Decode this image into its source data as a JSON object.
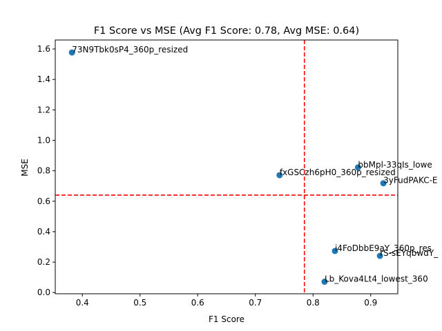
{
  "chart_data": {
    "type": "scatter",
    "title": "F1 Score vs MSE (Avg F1 Score: 0.78, Avg MSE: 0.64)",
    "xlabel": "F1 Score",
    "ylabel": "MSE",
    "xlim": [
      0.353,
      0.947
    ],
    "ylim": [
      -0.008,
      1.659
    ],
    "xticks": [
      0.4,
      0.5,
      0.6,
      0.7,
      0.8,
      0.9
    ],
    "yticks": [
      0.0,
      0.2,
      0.4,
      0.6,
      0.8,
      1.0,
      1.2,
      1.4,
      1.6
    ],
    "grid": false,
    "marker_color": "#1f77b4",
    "reference_line_color": "#ff0000",
    "reference_lines": {
      "x": 0.785,
      "y": 0.64
    },
    "points": [
      {
        "label": "73N9Tbk0sP4_360p_resized",
        "x": 0.382,
        "y": 1.577
      },
      {
        "label": "bbMpl-33qIs_lowe",
        "x": 0.878,
        "y": 0.822
      },
      {
        "label": "fxGSCzh6pH0_360p_resized",
        "x": 0.742,
        "y": 0.771
      },
      {
        "label": "3yFudPAKC-E",
        "x": 0.922,
        "y": 0.718
      },
      {
        "label": "i4FoDbbE9aY_360p_res",
        "x": 0.838,
        "y": 0.273
      },
      {
        "label": "rS-sEYqbwdY_",
        "x": 0.916,
        "y": 0.241
      },
      {
        "label": "Lb_Kova4Lt4_lowest_360",
        "x": 0.82,
        "y": 0.071
      }
    ]
  }
}
